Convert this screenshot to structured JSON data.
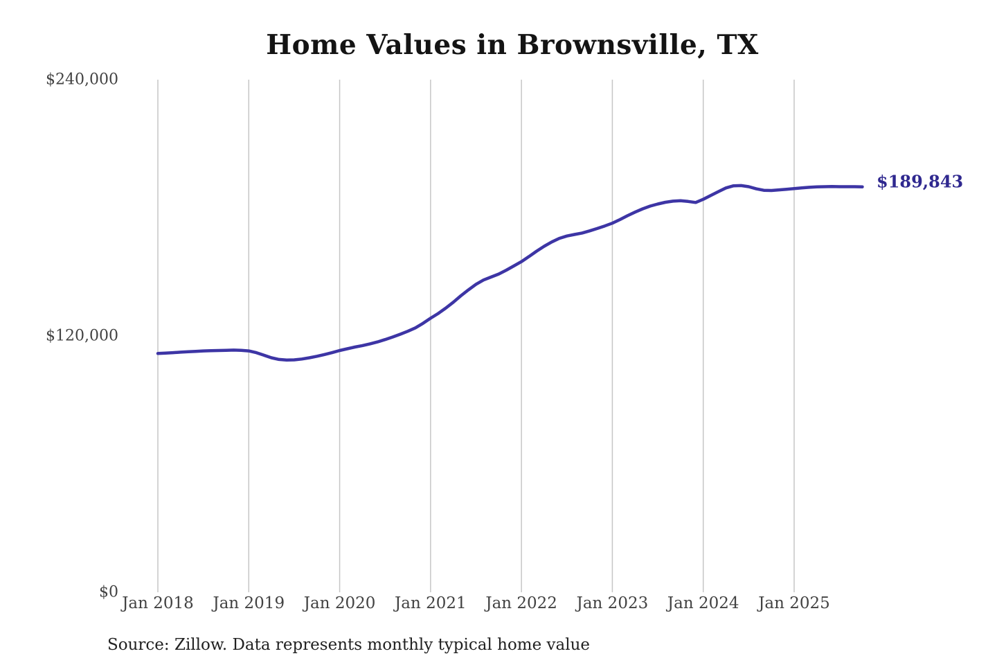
{
  "chart_data": {
    "type": "line",
    "title": "Home Values in Brownsville, TX",
    "source_note": "Source: Zillow. Data represents monthly typical home value",
    "end_label": "$189,843",
    "latest_value": 189843,
    "frequency": "monthly",
    "start_month": "Jan 2018",
    "end_month": "Oct 2025",
    "values": [
      111800,
      112000,
      112200,
      112400,
      112600,
      112800,
      113000,
      113100,
      113200,
      113300,
      113400,
      113300,
      113000,
      112200,
      111000,
      109800,
      109000,
      108700,
      108800,
      109200,
      109800,
      110500,
      111300,
      112200,
      113200,
      114000,
      114800,
      115500,
      116300,
      117200,
      118300,
      119500,
      120800,
      122200,
      123800,
      125900,
      128300,
      130500,
      133000,
      135800,
      138800,
      141600,
      144200,
      146200,
      147600,
      149000,
      150800,
      152800,
      154800,
      157200,
      159700,
      162000,
      164000,
      165700,
      166800,
      167500,
      168200,
      169200,
      170300,
      171500,
      172800,
      174500,
      176300,
      178000,
      179500,
      180800,
      181800,
      182600,
      183100,
      183300,
      183000,
      182500,
      184000,
      185800,
      187600,
      189300,
      190300,
      190400,
      189900,
      188900,
      188200,
      188100,
      188400,
      188700,
      189000,
      189300,
      189600,
      189800,
      189900,
      190000,
      189900,
      189900,
      189900,
      189843
    ],
    "x_ticks": [
      {
        "label": "Jan 2018",
        "month_index": 0
      },
      {
        "label": "Jan 2019",
        "month_index": 12
      },
      {
        "label": "Jan 2020",
        "month_index": 24
      },
      {
        "label": "Jan 2021",
        "month_index": 36
      },
      {
        "label": "Jan 2022",
        "month_index": 48
      },
      {
        "label": "Jan 2023",
        "month_index": 60
      },
      {
        "label": "Jan 2024",
        "month_index": 72
      },
      {
        "label": "Jan 2025",
        "month_index": 84
      }
    ],
    "y_ticks": [
      {
        "label": "$240,000",
        "value": 240000
      },
      {
        "label": "$120,000",
        "value": 120000
      },
      {
        "label": "$0",
        "value": 0
      }
    ],
    "ylim": [
      0,
      240000
    ],
    "grid": "vertical-only",
    "legend": "none",
    "colors": {
      "line": "#3d35a5",
      "end_label": "#2f288f",
      "gridline": "#c6c6c6",
      "axis_text": "#424242",
      "title_text": "#141414",
      "source_text": "#212121"
    }
  }
}
